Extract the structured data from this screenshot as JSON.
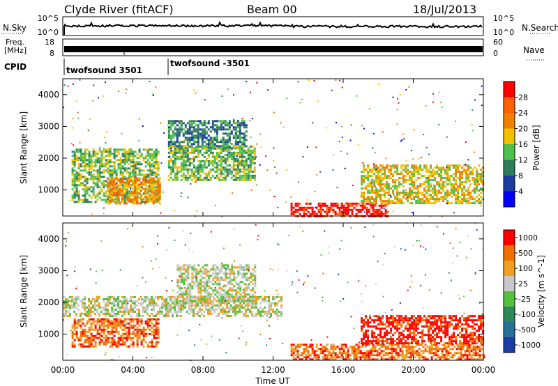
{
  "header": {
    "station": "Clyde River (fitACF)",
    "beam": "Beam 00",
    "date": "18/Jul/2013"
  },
  "nsky_panel": {
    "left_label": "N.Sky",
    "right_label": "N.Search",
    "left_ticks": [
      "10^5",
      "10^0"
    ],
    "right_ticks": [
      "10^5",
      "10^0"
    ]
  },
  "freq_panel": {
    "left_label_line1": "Freq.",
    "left_label_line2": "[MHz]",
    "right_label": "Nave",
    "left_ticks": [
      "18",
      "8"
    ],
    "right_ticks": [
      "60",
      "0"
    ]
  },
  "cpid": {
    "label": "CPID",
    "programs": [
      "twofsound 3501",
      "twofsound -3501"
    ]
  },
  "chart_data": [
    {
      "type": "heatmap",
      "title": "",
      "xlabel": "",
      "ylabel": "Slant Range [km]",
      "x_ticks": [
        "00:00",
        "04:00",
        "08:00",
        "12:00",
        "16:00",
        "20:00",
        "00:00"
      ],
      "xlim_hours": [
        0,
        24
      ],
      "ylim": [
        180,
        4500
      ],
      "y_ticks": [
        1000,
        2000,
        3000,
        4000
      ],
      "colorbar": {
        "label": "Power [dB]",
        "range": [
          0,
          32
        ],
        "ticks": [
          "4",
          "8",
          "12",
          "16",
          "20",
          "24",
          "28"
        ],
        "colors": [
          "#0000ff",
          "#1e3ca0",
          "#2f7c5c",
          "#4dc04d",
          "#f0c000",
          "#f08000",
          "#ff6000",
          "#ff0000"
        ]
      },
      "regions": [
        {
          "x": [
            0.5,
            5.5
          ],
          "y": [
            600,
            2300
          ],
          "value": 12
        },
        {
          "x": [
            2.5,
            5.5
          ],
          "y": [
            600,
            1400
          ],
          "value": 22
        },
        {
          "x": [
            6.0,
            10.5
          ],
          "y": [
            2300,
            3200
          ],
          "value": 10
        },
        {
          "x": [
            6.0,
            11.0
          ],
          "y": [
            1300,
            2400
          ],
          "value": 14
        },
        {
          "x": [
            13.0,
            18.5
          ],
          "y": [
            200,
            600
          ],
          "value": 30
        },
        {
          "x": [
            17.0,
            24.0
          ],
          "y": [
            600,
            1800
          ],
          "value": 16
        }
      ]
    },
    {
      "type": "heatmap",
      "title": "",
      "xlabel": "Time UT",
      "ylabel": "Slant Range [km]",
      "x_ticks": [
        "00:00",
        "04:00",
        "08:00",
        "12:00",
        "16:00",
        "20:00",
        "00:00"
      ],
      "xlim_hours": [
        0,
        24
      ],
      "ylim": [
        180,
        4500
      ],
      "y_ticks": [
        1000,
        2000,
        3000,
        4000
      ],
      "colorbar": {
        "label": "Velocity [m s^-1]",
        "ticks": [
          "1000",
          "500",
          "100",
          "25",
          "-25",
          "-100",
          "-500",
          "-1000"
        ],
        "colors": [
          "#1c3ca8",
          "#2a6e9a",
          "#30885a",
          "#55c040",
          "#c8c8c8",
          "#f0a020",
          "#f07000",
          "#ff0000"
        ]
      },
      "regions": [
        {
          "x": [
            0.0,
            12.5
          ],
          "y": [
            1600,
            2200
          ],
          "value": "-25..25"
        },
        {
          "x": [
            0.5,
            5.5
          ],
          "y": [
            600,
            1500
          ],
          "value": "100..500"
        },
        {
          "x": [
            6.5,
            11.0
          ],
          "y": [
            2000,
            3200
          ],
          "value": "-25..25"
        },
        {
          "x": [
            13.0,
            24.0
          ],
          "y": [
            200,
            700
          ],
          "value": "100..500"
        },
        {
          "x": [
            17.0,
            24.0
          ],
          "y": [
            700,
            1600
          ],
          "value": "500..1000"
        }
      ]
    }
  ]
}
